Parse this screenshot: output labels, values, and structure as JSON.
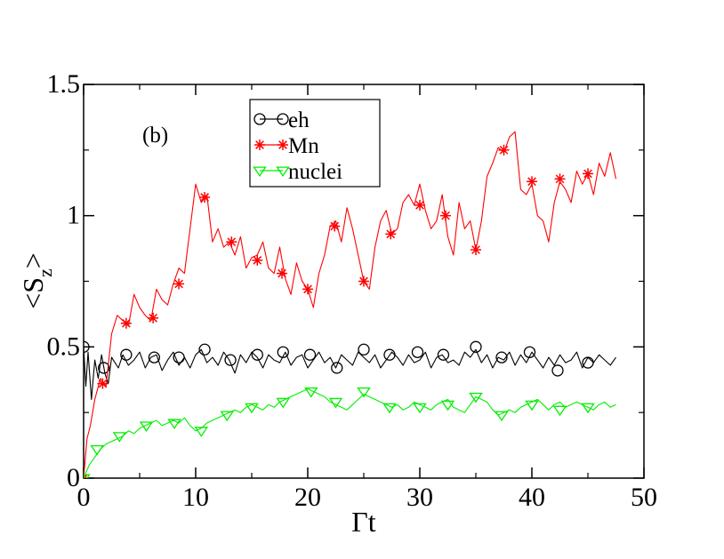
{
  "chart_data": {
    "type": "line",
    "panel_label": "(b)",
    "xlabel": "Γt",
    "ylabel": {
      "base": "<S",
      "sub": "z",
      "close": ">"
    },
    "xlim": [
      0,
      50
    ],
    "ylim": [
      0,
      1.5
    ],
    "xticks": [
      0,
      10,
      20,
      30,
      40,
      50
    ],
    "xtick_labels": [
      "0",
      "10",
      "20",
      "30",
      "40",
      "50"
    ],
    "yticks": [
      0,
      0.5,
      1,
      1.5
    ],
    "ytick_labels": [
      "0",
      "0.5",
      "1",
      "1.5"
    ],
    "legend_position": "top-center",
    "series": [
      {
        "name": "eh",
        "color": "#000000",
        "marker": "circle",
        "x": [
          0,
          0.2,
          0.4,
          0.7,
          1,
          1.3,
          1.6,
          1.9,
          2.2,
          2.5,
          2.8,
          3.1,
          3.5,
          4,
          4.5,
          5,
          5.5,
          6,
          6.5,
          7,
          7.5,
          8,
          8.5,
          9,
          9.5,
          10,
          10.5,
          11,
          11.5,
          12,
          12.5,
          13,
          13.5,
          14,
          14.5,
          15,
          15.5,
          16,
          16.5,
          17,
          17.5,
          18,
          18.5,
          19,
          19.5,
          20,
          20.5,
          21,
          21.5,
          22,
          22.5,
          23,
          23.5,
          24,
          24.5,
          25,
          25.5,
          26,
          26.5,
          27,
          27.5,
          28,
          28.5,
          29,
          29.5,
          30,
          30.5,
          31,
          31.5,
          32,
          32.5,
          33,
          33.5,
          34,
          34.5,
          35,
          35.5,
          36,
          36.5,
          37,
          37.5,
          38,
          38.5,
          39,
          39.5,
          40,
          40.5,
          41,
          41.5,
          42,
          42.5,
          43,
          43.5,
          44,
          44.5,
          45,
          45.5,
          46,
          46.5,
          47,
          47.5
        ],
        "y": [
          0.5,
          0.35,
          0.48,
          0.3,
          0.45,
          0.38,
          0.47,
          0.4,
          0.36,
          0.46,
          0.44,
          0.42,
          0.47,
          0.43,
          0.45,
          0.48,
          0.42,
          0.46,
          0.47,
          0.41,
          0.45,
          0.48,
          0.43,
          0.46,
          0.42,
          0.47,
          0.49,
          0.44,
          0.46,
          0.43,
          0.48,
          0.45,
          0.4,
          0.47,
          0.44,
          0.48,
          0.46,
          0.42,
          0.47,
          0.45,
          0.44,
          0.48,
          0.43,
          0.46,
          0.47,
          0.42,
          0.45,
          0.48,
          0.44,
          0.46,
          0.42,
          0.47,
          0.45,
          0.43,
          0.48,
          0.46,
          0.44,
          0.47,
          0.42,
          0.45,
          0.48,
          0.46,
          0.43,
          0.47,
          0.44,
          0.45,
          0.48,
          0.42,
          0.46,
          0.47,
          0.44,
          0.45,
          0.43,
          0.48,
          0.46,
          0.49,
          0.44,
          0.47,
          0.42,
          0.46,
          0.45,
          0.48,
          0.43,
          0.47,
          0.44,
          0.48,
          0.45,
          0.42,
          0.46,
          0.43,
          0.47,
          0.44,
          0.45,
          0.48,
          0.42,
          0.46,
          0.44,
          0.47,
          0.45,
          0.43,
          0.46
        ],
        "markers_x": [
          0,
          1.8,
          3.8,
          6.3,
          8.5,
          10.8,
          13.1,
          15.5,
          17.8,
          20.2,
          22.6,
          25,
          27.3,
          29.8,
          32.1,
          35,
          37.3,
          39.8,
          42.3,
          45
        ],
        "markers_y": [
          0.5,
          0.42,
          0.47,
          0.46,
          0.46,
          0.49,
          0.45,
          0.47,
          0.48,
          0.47,
          0.42,
          0.49,
          0.47,
          0.48,
          0.47,
          0.5,
          0.46,
          0.48,
          0.41,
          0.44
        ]
      },
      {
        "name": "Mn",
        "color": "#ff0000",
        "marker": "asterisk",
        "x": [
          0,
          0.3,
          0.6,
          1,
          1.5,
          2,
          2.5,
          3,
          3.5,
          4,
          4.5,
          5,
          5.5,
          6,
          6.5,
          7,
          7.5,
          8,
          8.5,
          9,
          9.5,
          10,
          10.5,
          11,
          11.5,
          12,
          12.5,
          13,
          13.5,
          14,
          14.5,
          15,
          15.5,
          16,
          16.5,
          17,
          17.5,
          18,
          18.5,
          19,
          19.5,
          20,
          20.5,
          21,
          21.5,
          22,
          22.5,
          23,
          23.5,
          24,
          24.5,
          25,
          25.5,
          26,
          26.5,
          27,
          27.5,
          28,
          28.5,
          29,
          29.5,
          30,
          30.5,
          31,
          31.5,
          32,
          32.5,
          33,
          33.5,
          34,
          34.5,
          35,
          35.5,
          36,
          36.5,
          37,
          37.5,
          38,
          38.5,
          39,
          39.5,
          40,
          40.5,
          41,
          41.5,
          42,
          42.5,
          43,
          43.5,
          44,
          44.5,
          45,
          45.5,
          46,
          46.5,
          47,
          47.5
        ],
        "y": [
          0,
          0.15,
          0.2,
          0.3,
          0.38,
          0.35,
          0.55,
          0.62,
          0.6,
          0.58,
          0.7,
          0.65,
          0.62,
          0.6,
          0.72,
          0.68,
          0.66,
          0.74,
          0.8,
          0.78,
          0.95,
          1.12,
          1.05,
          1.08,
          0.9,
          0.95,
          0.88,
          0.9,
          0.85,
          0.92,
          0.8,
          0.84,
          0.85,
          0.9,
          0.8,
          0.78,
          0.88,
          0.76,
          0.7,
          0.82,
          0.75,
          0.72,
          0.65,
          0.78,
          0.85,
          0.96,
          0.98,
          0.9,
          1.03,
          0.95,
          0.85,
          0.75,
          0.72,
          0.88,
          0.98,
          1.02,
          0.93,
          0.95,
          1.05,
          1.08,
          1.04,
          1.12,
          1.02,
          0.95,
          0.98,
          1.08,
          0.92,
          0.85,
          1.05,
          0.95,
          0.98,
          0.87,
          0.98,
          1.15,
          1.2,
          1.26,
          1.24,
          1.3,
          1.32,
          1.1,
          1.08,
          1.12,
          1.0,
          0.98,
          0.9,
          1.05,
          1.13,
          1.1,
          1.05,
          1.17,
          1.12,
          1.16,
          1.08,
          1.2,
          1.15,
          1.24,
          1.14
        ],
        "markers_x": [
          0,
          1.7,
          3.8,
          6.2,
          8.5,
          10.8,
          13.2,
          15.5,
          17.7,
          20,
          22.4,
          25,
          27.4,
          30,
          32.3,
          35,
          37.5,
          40,
          42.5,
          45
        ],
        "markers_y": [
          0,
          0.36,
          0.59,
          0.61,
          0.74,
          1.07,
          0.9,
          0.83,
          0.78,
          0.72,
          0.96,
          0.75,
          0.93,
          1.04,
          1.0,
          0.87,
          1.25,
          1.13,
          1.14,
          1.16
        ]
      },
      {
        "name": "nuclei",
        "color": "#00ee00",
        "marker": "triangle-down",
        "x": [
          0,
          0.5,
          1,
          1.5,
          2,
          2.5,
          3,
          3.5,
          4,
          4.5,
          5,
          5.5,
          6,
          6.5,
          7,
          7.5,
          8,
          8.5,
          9,
          9.5,
          10,
          10.5,
          11,
          11.5,
          12,
          12.5,
          13,
          13.5,
          14,
          14.5,
          15,
          15.5,
          16,
          16.5,
          17,
          17.5,
          18,
          18.5,
          19,
          19.5,
          20,
          20.5,
          21,
          21.5,
          22,
          22.5,
          23,
          23.5,
          24,
          24.5,
          25,
          25.5,
          26,
          26.5,
          27,
          27.5,
          28,
          28.5,
          29,
          29.5,
          30,
          30.5,
          31,
          31.5,
          32,
          32.5,
          33,
          33.5,
          34,
          34.5,
          35,
          35.5,
          36,
          36.5,
          37,
          37.5,
          38,
          38.5,
          39,
          39.5,
          40,
          40.5,
          41,
          41.5,
          42,
          42.5,
          43,
          43.5,
          44,
          44.5,
          45,
          45.5,
          46,
          46.5,
          47,
          47.5
        ],
        "y": [
          0,
          0.05,
          0.08,
          0.11,
          0.13,
          0.14,
          0.15,
          0.16,
          0.18,
          0.17,
          0.19,
          0.2,
          0.21,
          0.22,
          0.2,
          0.21,
          0.22,
          0.21,
          0.23,
          0.2,
          0.18,
          0.19,
          0.21,
          0.22,
          0.23,
          0.24,
          0.25,
          0.26,
          0.25,
          0.27,
          0.28,
          0.27,
          0.26,
          0.28,
          0.27,
          0.29,
          0.3,
          0.31,
          0.32,
          0.33,
          0.34,
          0.33,
          0.32,
          0.31,
          0.29,
          0.28,
          0.27,
          0.26,
          0.28,
          0.3,
          0.32,
          0.31,
          0.3,
          0.29,
          0.28,
          0.27,
          0.28,
          0.26,
          0.27,
          0.29,
          0.28,
          0.27,
          0.26,
          0.28,
          0.29,
          0.3,
          0.27,
          0.26,
          0.25,
          0.28,
          0.31,
          0.3,
          0.29,
          0.26,
          0.24,
          0.25,
          0.26,
          0.25,
          0.27,
          0.28,
          0.29,
          0.3,
          0.28,
          0.26,
          0.28,
          0.29,
          0.27,
          0.28,
          0.29,
          0.28,
          0.27,
          0.26,
          0.28,
          0.29,
          0.27,
          0.28
        ],
        "markers_x": [
          0,
          1.2,
          3.2,
          5.6,
          8.1,
          10.5,
          12.8,
          15,
          17.8,
          20.3,
          22.5,
          25,
          27.3,
          30,
          32.5,
          35,
          37.3,
          40,
          42.5,
          45
        ],
        "markers_y": [
          0,
          0.11,
          0.16,
          0.2,
          0.21,
          0.18,
          0.24,
          0.27,
          0.29,
          0.33,
          0.29,
          0.33,
          0.27,
          0.27,
          0.28,
          0.31,
          0.24,
          0.28,
          0.26,
          0.27
        ]
      }
    ]
  }
}
